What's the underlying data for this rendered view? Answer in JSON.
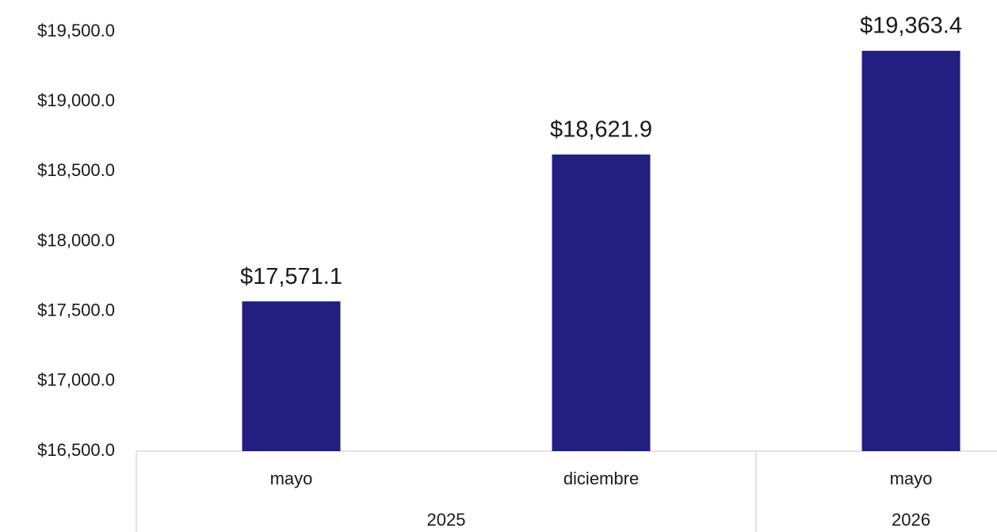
{
  "chart_data": {
    "type": "bar",
    "groups": [
      {
        "name": "2025",
        "categories": [
          "mayo",
          "diciembre"
        ]
      },
      {
        "name": "2026",
        "categories": [
          "mayo"
        ]
      }
    ],
    "values": [
      17571.1,
      18621.9,
      19363.4
    ],
    "value_labels": [
      "$17,571.1",
      "$18,621.9",
      "$19,363.4"
    ],
    "color": "#221f80",
    "ylim": [
      16500,
      19500
    ],
    "yticks": [
      {
        "value": 16500,
        "label": "$16,500.0"
      },
      {
        "value": 17000,
        "label": "$17,000.0"
      },
      {
        "value": 17500,
        "label": "$17,500.0"
      },
      {
        "value": 18000,
        "label": "$18,000.0"
      },
      {
        "value": 18500,
        "label": "$18,500.0"
      },
      {
        "value": 19000,
        "label": "$19,000.0"
      },
      {
        "value": 19500,
        "label": "$19,500.0"
      }
    ],
    "grid": false
  }
}
